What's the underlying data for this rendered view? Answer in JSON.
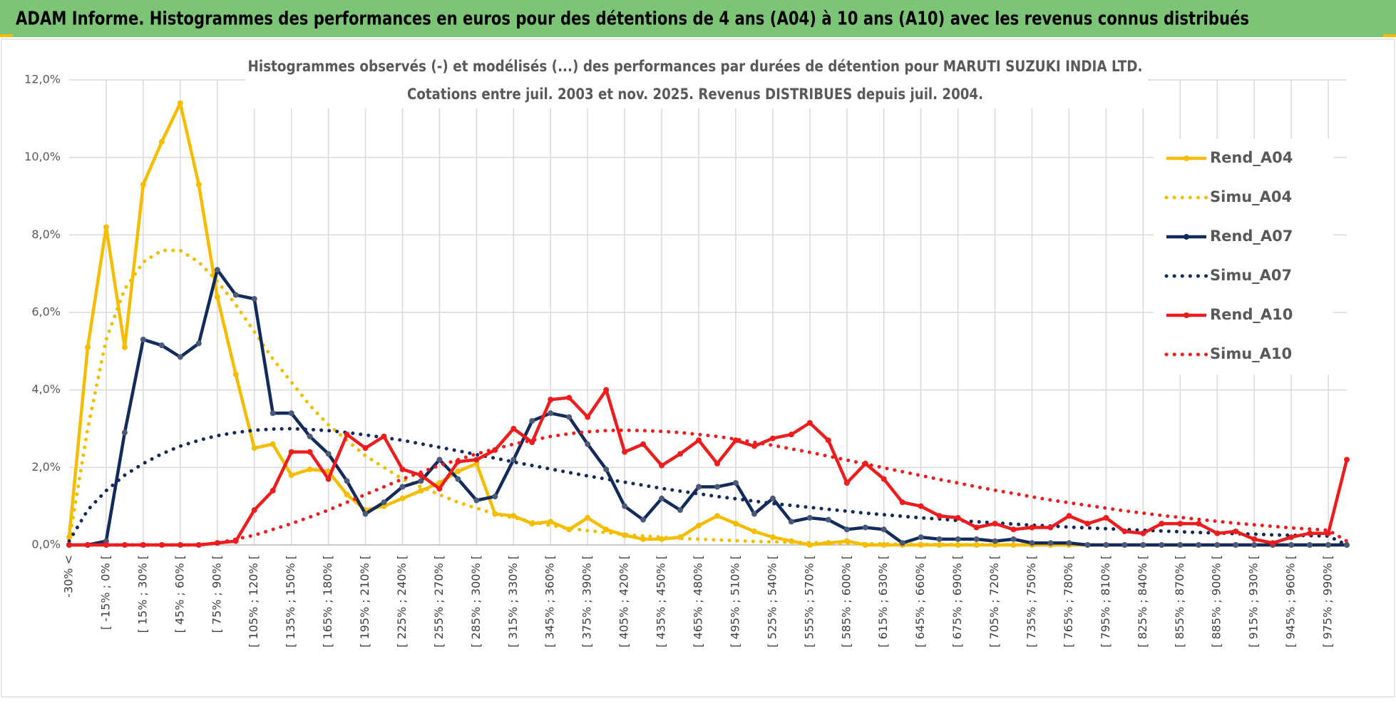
{
  "header": {
    "title": "ADAM Informe. Histogrammes des performances en euros pour des détentions de 4 ans (A04) à 10 ans (A10) avec les revenus connus distribués"
  },
  "chart_data": {
    "type": "line",
    "title": "Histogrammes observés (-) et modélisés (...) des performances par durées de détention pour MARUTI SUZUKI INDIA LTD.",
    "subtitle": "Cotations entre juil. 2003 et nov. 2025. Revenus DISTRIBUES depuis juil. 2004.",
    "categories": [
      "-30% <",
      null,
      "[ -15% ; 0% [",
      null,
      "[ 15% ; 30% [",
      null,
      "[ 45% ; 60% [",
      null,
      "[ 75% ; 90% [",
      null,
      "[ 105% ; 120% [",
      null,
      "[ 135% ; 150% [",
      null,
      "[ 165% ; 180% [",
      null,
      "[ 195% ; 210% [",
      null,
      "[ 225% ; 240% [",
      null,
      "[ 255% ; 270% [",
      null,
      "[ 285% ; 300% [",
      null,
      "[ 315% ; 330% [",
      null,
      "[ 345% ; 360% [",
      null,
      "[ 375% ; 390% [",
      null,
      "[ 405% ; 420% [",
      null,
      "[ 435% ; 450% [",
      null,
      "[ 465% ; 480% [",
      null,
      "[ 495% ; 510% [",
      null,
      "[ 525% ; 540% [",
      null,
      "[ 555% ; 570% [",
      null,
      "[ 585% ; 600% [",
      null,
      "[ 615% ; 630% [",
      null,
      "[ 645% ; 660% [",
      null,
      "[ 675% ; 690% [",
      null,
      "[ 705% ; 720% [",
      null,
      "[ 735% ; 750% [",
      null,
      "[ 765% ; 780% [",
      null,
      "[ 795% ; 810% [",
      null,
      "[ 825% ; 840% [",
      null,
      "[ 855% ; 870% [",
      null,
      "[ 885% ; 900% [",
      null,
      "[ 915% ; 930% [",
      null,
      "[ 945% ; 960% [",
      null,
      "[ 975% ; 990% [",
      null
    ],
    "series": [
      {
        "name": "Rend_A04",
        "color": "#f5bd00",
        "style": "solid",
        "values": [
          0.2,
          5.1,
          8.2,
          5.1,
          9.3,
          10.4,
          11.4,
          9.3,
          6.4,
          4.4,
          2.5,
          2.6,
          1.8,
          1.95,
          1.9,
          1.3,
          0.9,
          1.0,
          1.2,
          1.4,
          1.6,
          1.9,
          2.1,
          0.8,
          0.75,
          0.55,
          0.6,
          0.4,
          0.7,
          0.4,
          0.25,
          0.15,
          0.15,
          0.2,
          0.5,
          0.75,
          0.55,
          0.35,
          0.2,
          0.1,
          0.0,
          0.05,
          0.1,
          0.0,
          0,
          0,
          0,
          0,
          0,
          0,
          0,
          0,
          0,
          0,
          0,
          0,
          0,
          0,
          0,
          0,
          0,
          0,
          0,
          0,
          0,
          0,
          0,
          0,
          0,
          0
        ]
      },
      {
        "name": "Simu_A04",
        "color": "#f5bd00",
        "style": "dotted",
        "values": [
          0.1,
          3.0,
          5.3,
          6.6,
          7.3,
          7.6,
          7.6,
          7.3,
          6.8,
          6.2,
          5.5,
          4.8,
          4.2,
          3.6,
          3.1,
          2.7,
          2.3,
          2.0,
          1.7,
          1.5,
          1.3,
          1.1,
          0.95,
          0.8,
          0.7,
          0.6,
          0.5,
          0.43,
          0.37,
          0.32,
          0.27,
          0.23,
          0.2,
          0.17,
          0.15,
          0.13,
          0.11,
          0.09,
          0.08,
          0.07,
          0.06,
          0.05,
          0.04,
          0.03,
          0.03,
          0.02,
          0.02,
          0.01,
          0.01,
          0.01,
          0.01,
          0.01,
          0.01,
          0.01,
          0.01,
          0.01,
          0,
          0,
          0,
          0,
          0,
          0,
          0,
          0,
          0,
          0,
          0,
          0,
          0,
          0
        ]
      },
      {
        "name": "Rend_A07",
        "color": "#132a5c",
        "style": "solid",
        "values": [
          0,
          0,
          0.1,
          2.9,
          5.3,
          5.15,
          4.85,
          5.2,
          7.1,
          6.45,
          6.35,
          3.4,
          3.4,
          2.8,
          2.35,
          1.65,
          0.8,
          1.1,
          1.5,
          1.65,
          2.2,
          1.7,
          1.15,
          1.25,
          2.2,
          3.2,
          3.4,
          3.3,
          2.6,
          1.95,
          1.0,
          0.65,
          1.2,
          0.9,
          1.5,
          1.5,
          1.6,
          0.8,
          1.2,
          0.6,
          0.7,
          0.65,
          0.4,
          0.45,
          0.4,
          0.05,
          0.2,
          0.15,
          0.15,
          0.15,
          0.1,
          0.15,
          0.05,
          0.05,
          0.05,
          0,
          0,
          0,
          0,
          0,
          0,
          0,
          0,
          0,
          0,
          0,
          0,
          0,
          0,
          0
        ]
      },
      {
        "name": "Simu_A07",
        "color": "#132a5c",
        "style": "dotted",
        "values": [
          0.1,
          0.9,
          1.4,
          1.8,
          2.1,
          2.35,
          2.55,
          2.7,
          2.82,
          2.9,
          2.96,
          2.99,
          3.0,
          2.98,
          2.95,
          2.9,
          2.84,
          2.77,
          2.7,
          2.61,
          2.52,
          2.43,
          2.33,
          2.24,
          2.14,
          2.05,
          1.96,
          1.87,
          1.78,
          1.7,
          1.62,
          1.54,
          1.46,
          1.39,
          1.32,
          1.25,
          1.19,
          1.13,
          1.07,
          1.02,
          0.97,
          0.92,
          0.87,
          0.82,
          0.78,
          0.74,
          0.7,
          0.67,
          0.63,
          0.6,
          0.57,
          0.54,
          0.51,
          0.49,
          0.46,
          0.44,
          0.42,
          0.4,
          0.38,
          0.36,
          0.34,
          0.32,
          0.31,
          0.29,
          0.28,
          0.26,
          0.25,
          0.24,
          0.23,
          0
        ]
      },
      {
        "name": "Rend_A10",
        "color": "#ee1c1c",
        "style": "solid",
        "values": [
          0,
          0,
          0,
          0,
          0,
          0,
          0,
          0,
          0.05,
          0.1,
          0.9,
          1.4,
          2.4,
          2.4,
          1.7,
          2.85,
          2.5,
          2.8,
          1.95,
          1.8,
          1.45,
          2.15,
          2.2,
          2.45,
          3.0,
          2.65,
          3.75,
          3.8,
          3.3,
          4.0,
          2.4,
          2.6,
          2.05,
          2.35,
          2.7,
          2.1,
          2.7,
          2.55,
          2.75,
          2.85,
          3.15,
          2.7,
          1.6,
          2.1,
          1.7,
          1.1,
          1.0,
          0.75,
          0.7,
          0.45,
          0.55,
          0.4,
          0.45,
          0.45,
          0.75,
          0.55,
          0.7,
          0.35,
          0.3,
          0.55,
          0.55,
          0.55,
          0.3,
          0.35,
          0.15,
          0.05,
          0.2,
          0.3,
          0.3,
          2.2
        ]
      },
      {
        "name": "Simu_A10",
        "color": "#ee1c1c",
        "style": "dotted",
        "values": [
          0,
          0,
          0,
          0,
          0,
          0,
          0,
          0,
          0.05,
          0.15,
          0.25,
          0.4,
          0.55,
          0.72,
          0.9,
          1.1,
          1.3,
          1.5,
          1.7,
          1.88,
          2.05,
          2.2,
          2.35,
          2.48,
          2.6,
          2.7,
          2.8,
          2.87,
          2.92,
          2.95,
          2.96,
          2.95,
          2.93,
          2.9,
          2.85,
          2.8,
          2.73,
          2.65,
          2.57,
          2.48,
          2.39,
          2.29,
          2.19,
          2.09,
          1.99,
          1.89,
          1.79,
          1.69,
          1.6,
          1.5,
          1.41,
          1.33,
          1.24,
          1.16,
          1.09,
          1.02,
          0.95,
          0.88,
          0.82,
          0.76,
          0.71,
          0.66,
          0.61,
          0.56,
          0.52,
          0.48,
          0.44,
          0.41,
          0.38,
          0.1
        ]
      }
    ],
    "ylim": [
      0,
      12
    ],
    "yticks": [
      {
        "value": 0,
        "label": "0,0%"
      },
      {
        "value": 2,
        "label": "2,0%"
      },
      {
        "value": 4,
        "label": "4,0%"
      },
      {
        "value": 6,
        "label": "6,0%"
      },
      {
        "value": 8,
        "label": "8,0%"
      },
      {
        "value": 10,
        "label": "10,0%"
      },
      {
        "value": 12,
        "label": "12,0%"
      }
    ],
    "grid": true,
    "legend": "right"
  }
}
